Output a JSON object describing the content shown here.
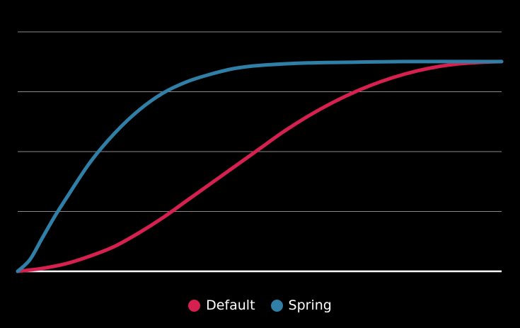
{
  "chart_data": {
    "type": "line",
    "title": "",
    "xlabel": "",
    "ylabel": "",
    "xlim": [
      0,
      1
    ],
    "ylim": [
      0,
      1.25
    ],
    "grid": true,
    "legend_position": "bottom-center",
    "background_color": "#000000",
    "gridline_color": "#8a8a8a",
    "baseline_color": "#ffffff",
    "series": [
      {
        "name": "Default",
        "color": "#d6204f",
        "x": [
          0,
          0.05,
          0.1,
          0.15,
          0.2,
          0.25,
          0.3,
          0.35,
          0.4,
          0.45,
          0.5,
          0.55,
          0.6,
          0.65,
          0.7,
          0.75,
          0.8,
          0.85,
          0.9,
          0.95,
          1.0
        ],
        "values": [
          0,
          0.015,
          0.04,
          0.08,
          0.13,
          0.2,
          0.28,
          0.37,
          0.46,
          0.55,
          0.64,
          0.73,
          0.81,
          0.88,
          0.94,
          0.99,
          1.03,
          1.06,
          1.08,
          1.09,
          1.095
        ]
      },
      {
        "name": "Spring",
        "color": "#2f7fa6",
        "x": [
          0,
          0.025,
          0.05,
          0.075,
          0.1,
          0.15,
          0.2,
          0.25,
          0.3,
          0.35,
          0.4,
          0.45,
          0.5,
          0.6,
          0.7,
          0.8,
          0.9,
          1.0
        ],
        "values": [
          0,
          0.06,
          0.17,
          0.28,
          0.38,
          0.57,
          0.72,
          0.84,
          0.93,
          0.99,
          1.03,
          1.06,
          1.075,
          1.088,
          1.092,
          1.095,
          1.095,
          1.095
        ]
      }
    ]
  }
}
